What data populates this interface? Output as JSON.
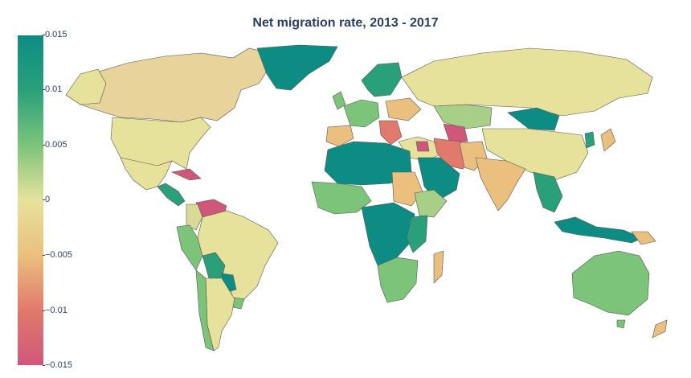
{
  "title": "Net migration rate, 2013 - 2017",
  "colorbar": {
    "ticks": [
      "0.015",
      "0.01",
      "0.005",
      "0",
      "−0.005",
      "−0.01",
      "−0.015"
    ],
    "colors": {
      "max": "#0d8c84",
      "high": "#2aa07a",
      "mid_high": "#7cc47a",
      "zero": "#e6e29c",
      "mid_low": "#ebc07e",
      "low": "#e17a6c",
      "min": "#d0577a"
    }
  }
}
